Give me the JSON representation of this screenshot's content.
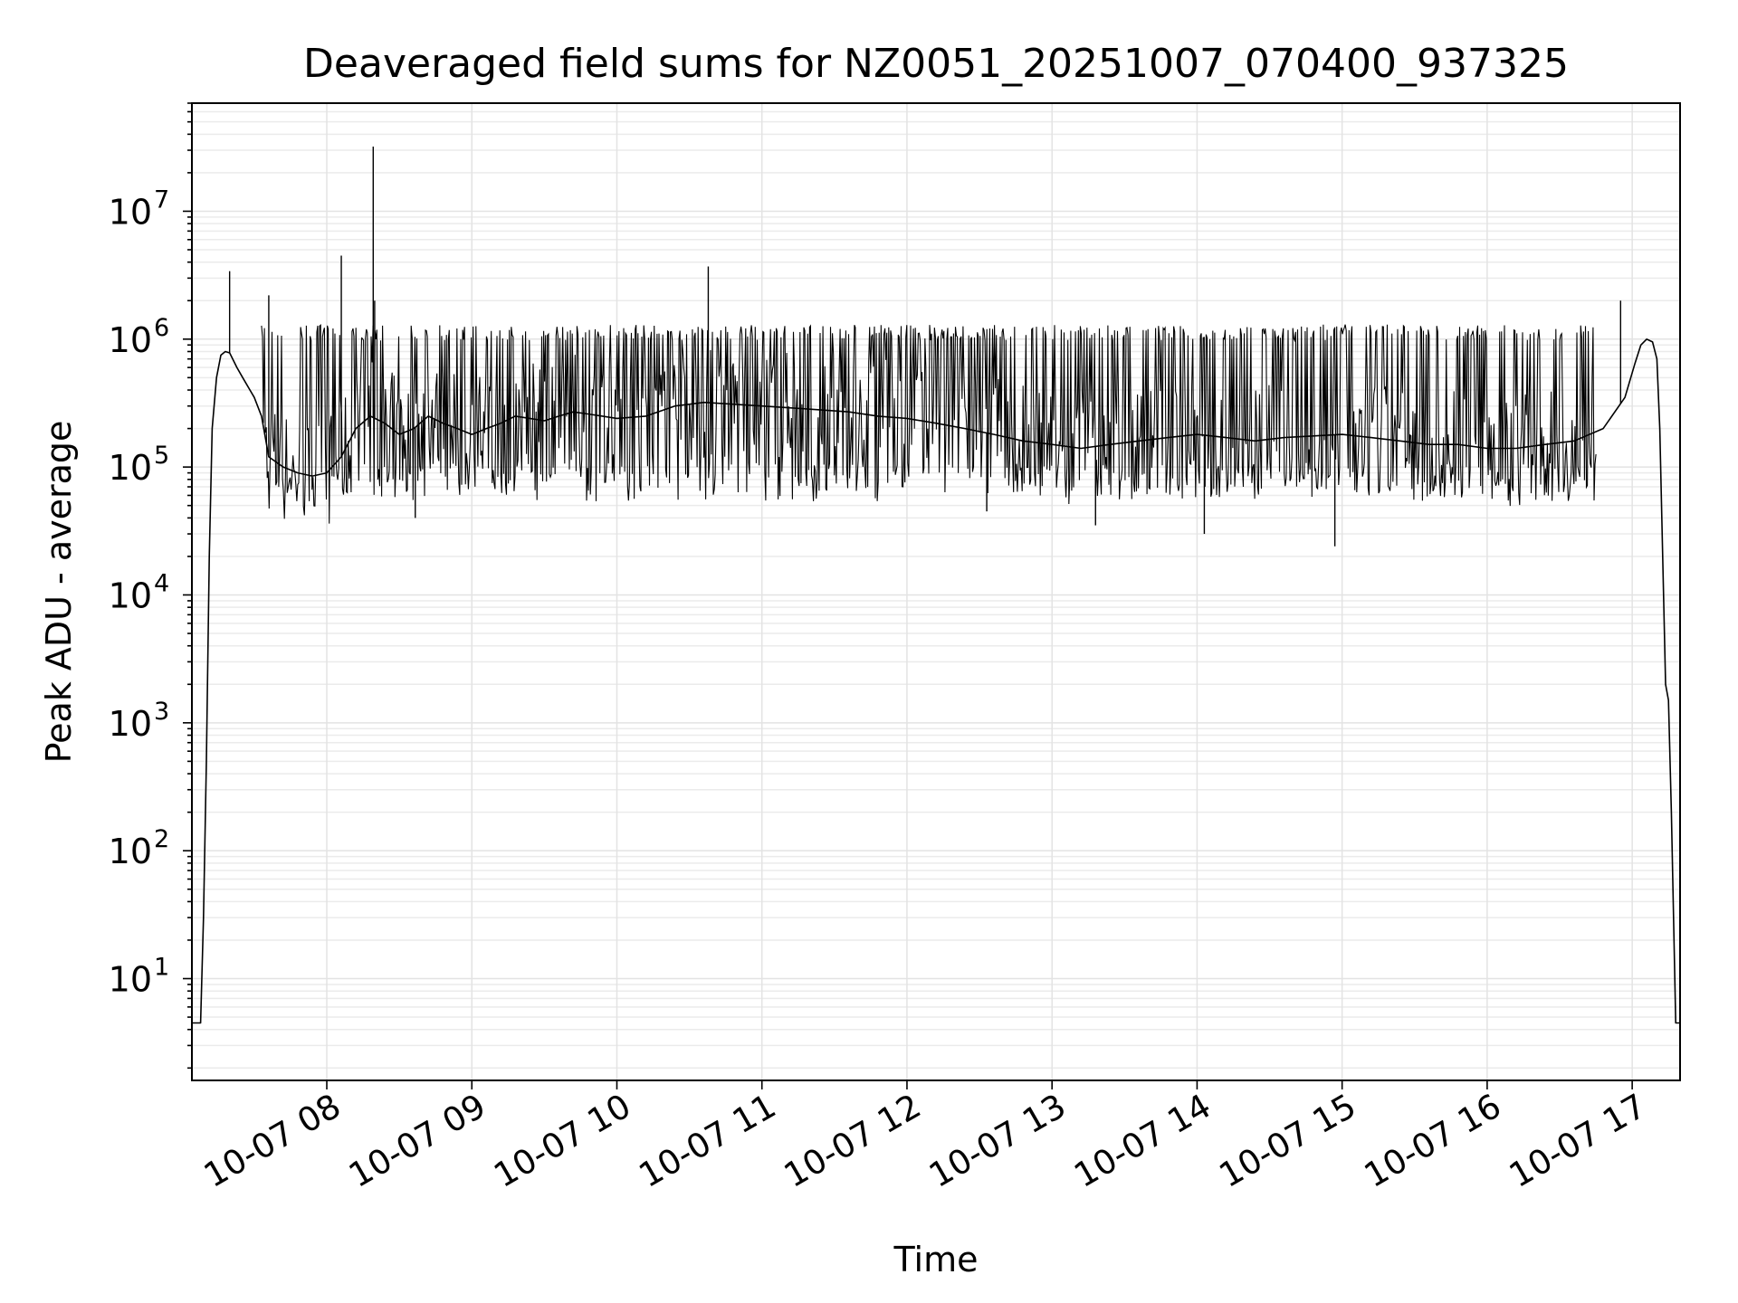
{
  "chart_data": {
    "type": "line",
    "title": "Deaveraged field sums for NZ0051_20251007_070400_937325",
    "xlabel": "Time",
    "ylabel": "Peak ADU - average",
    "yscale": "log",
    "ylim": [
      1.6,
      70000000
    ],
    "xlim_hours": [
      7.07,
      17.33
    ],
    "grid": true,
    "x_tick_labels": [
      "10-07 08",
      "10-07 09",
      "10-07 10",
      "10-07 11",
      "10-07 12",
      "10-07 13",
      "10-07 14",
      "10-07 15",
      "10-07 16",
      "10-07 17"
    ],
    "x_tick_hours": [
      8,
      9,
      10,
      11,
      12,
      13,
      14,
      15,
      16,
      17
    ],
    "y_tick_exponents": [
      1,
      2,
      3,
      4,
      5,
      6,
      7
    ],
    "y_tick_base": "10",
    "series": [
      {
        "name": "Peak ADU - average",
        "color": "#000000",
        "x_hours": [
          7.07,
          7.1,
          7.13,
          7.15,
          7.17,
          7.19,
          7.21,
          7.24,
          7.27,
          7.3,
          7.33,
          7.38,
          7.42,
          7.47,
          7.5,
          7.55,
          7.6,
          7.7,
          7.8,
          7.9,
          8.0,
          8.1,
          8.2,
          8.3,
          8.4,
          8.5,
          8.6,
          8.7,
          8.8,
          8.9,
          9.0,
          9.1,
          9.2,
          9.3,
          9.4,
          9.5,
          9.6,
          9.7,
          9.8,
          9.9,
          10.0,
          10.2,
          10.4,
          10.6,
          10.8,
          11.0,
          11.2,
          11.4,
          11.6,
          11.8,
          12.0,
          12.2,
          12.4,
          12.6,
          12.8,
          13.0,
          13.2,
          13.4,
          13.6,
          13.8,
          14.0,
          14.2,
          14.4,
          14.6,
          14.8,
          15.0,
          15.2,
          15.4,
          15.6,
          15.8,
          16.0,
          16.2,
          16.4,
          16.6,
          16.8,
          16.95,
          17.02,
          17.06,
          17.1,
          17.14,
          17.17,
          17.19,
          17.21,
          17.23,
          17.25,
          17.27,
          17.3,
          17.33
        ],
        "values": [
          4.5,
          4.5,
          4.5,
          30,
          500,
          20000,
          200000,
          500000,
          750000,
          800000,
          780000,
          600000,
          500000,
          400000,
          350000,
          250000,
          120000,
          100000,
          90000,
          85000,
          90000,
          120000,
          200000,
          250000,
          220000,
          180000,
          200000,
          250000,
          220000,
          200000,
          180000,
          200000,
          220000,
          250000,
          240000,
          230000,
          250000,
          270000,
          260000,
          250000,
          240000,
          250000,
          300000,
          320000,
          310000,
          300000,
          290000,
          280000,
          270000,
          250000,
          240000,
          220000,
          200000,
          180000,
          160000,
          150000,
          140000,
          150000,
          160000,
          170000,
          180000,
          170000,
          160000,
          170000,
          175000,
          180000,
          170000,
          160000,
          150000,
          150000,
          140000,
          140000,
          150000,
          160000,
          200000,
          350000,
          650000,
          900000,
          1000000,
          950000,
          700000,
          200000,
          20000,
          2000,
          1500,
          200,
          4.5,
          4.5
        ],
        "noise_band": {
          "x_start_hours": 7.55,
          "x_end_hours": 16.75,
          "upper_typical": 1300000,
          "lower_typical": 60000
        },
        "spikes": [
          {
            "x_hours": 7.33,
            "value": 3400000
          },
          {
            "x_hours": 7.6,
            "value": 2200000
          },
          {
            "x_hours": 8.1,
            "value": 4500000
          },
          {
            "x_hours": 8.32,
            "value": 32000000
          },
          {
            "x_hours": 8.33,
            "value": 2000000
          },
          {
            "x_hours": 10.63,
            "value": 3700000
          },
          {
            "x_hours": 12.55,
            "value": 45000
          },
          {
            "x_hours": 13.3,
            "value": 35000
          },
          {
            "x_hours": 14.05,
            "value": 30000
          },
          {
            "x_hours": 14.95,
            "value": 24000
          },
          {
            "x_hours": 16.92,
            "value": 2000000
          },
          {
            "x_hours": 8.61,
            "value": 40000
          }
        ]
      }
    ]
  }
}
